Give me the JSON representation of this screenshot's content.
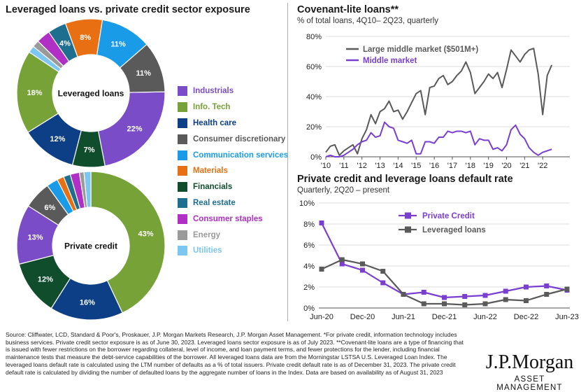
{
  "left": {
    "title": "Leveraged loans vs. private credit sector exposure",
    "legend": [
      {
        "label": "Industrials",
        "color": "#7b4cc8"
      },
      {
        "label": "Info. Tech",
        "color": "#76a237"
      },
      {
        "label": "Health care",
        "color": "#0d3f86"
      },
      {
        "label": "Consumer discretionary",
        "color": "#5a5a5a"
      },
      {
        "label": "Communication services",
        "color": "#1a9be8"
      },
      {
        "label": "Materials",
        "color": "#e86f12"
      },
      {
        "label": "Financials",
        "color": "#0f4d2c"
      },
      {
        "label": "Real estate",
        "color": "#1d6e8f"
      },
      {
        "label": "Consumer staples",
        "color": "#b02fc4"
      },
      {
        "label": "Energy",
        "color": "#9a9a9a"
      },
      {
        "label": "Utilities",
        "color": "#7cc6f2"
      }
    ]
  },
  "chart_data": [
    {
      "type": "pie",
      "center_label": "Leveraged loans",
      "slices": [
        {
          "name": "Industrials",
          "value": 22,
          "label": "22%"
        },
        {
          "name": "Financials",
          "value": 7,
          "label": "7%"
        },
        {
          "name": "Health care",
          "value": 12,
          "label": "12%"
        },
        {
          "name": "Info. Tech",
          "value": 18,
          "label": "18%"
        },
        {
          "name": "Utilities",
          "value": 1.5,
          "label": ""
        },
        {
          "name": "Energy",
          "value": 1.5,
          "label": ""
        },
        {
          "name": "Consumer staples",
          "value": 3,
          "label": ""
        },
        {
          "name": "Real estate",
          "value": 4,
          "label": "4%"
        },
        {
          "name": "Materials",
          "value": 8,
          "label": "8%"
        },
        {
          "name": "Communication services",
          "value": 11,
          "label": "11%"
        },
        {
          "name": "Consumer discretionary",
          "value": 11,
          "label": "11%"
        }
      ]
    },
    {
      "type": "pie",
      "center_label": "Private credit",
      "slices": [
        {
          "name": "Info. Tech",
          "value": 43,
          "label": "43%"
        },
        {
          "name": "Health care",
          "value": 16,
          "label": "16%"
        },
        {
          "name": "Financials",
          "value": 12,
          "label": "12%"
        },
        {
          "name": "Industrials",
          "value": 13,
          "label": "13%"
        },
        {
          "name": "Consumer discretionary",
          "value": 6,
          "label": "6%"
        },
        {
          "name": "Communication services",
          "value": 2.5,
          "label": ""
        },
        {
          "name": "Materials",
          "value": 1.5,
          "label": ""
        },
        {
          "name": "Real estate",
          "value": 1.5,
          "label": ""
        },
        {
          "name": "Consumer staples",
          "value": 2,
          "label": ""
        },
        {
          "name": "Energy",
          "value": 1,
          "label": ""
        },
        {
          "name": "Utilities",
          "value": 1.5,
          "label": ""
        }
      ]
    },
    {
      "type": "line",
      "title": "Covenant-lite loans**",
      "subtitle": "% of total loans, 4Q10– 2Q23, quarterly",
      "ylim": [
        0,
        80
      ],
      "yticks": [
        0,
        20,
        40,
        60,
        80
      ],
      "ytick_labels": [
        "0%",
        "20%",
        "40%",
        "60%",
        "80%"
      ],
      "xlim": [
        2010,
        2023.5
      ],
      "xticks": [
        2010,
        2011,
        2012,
        2013,
        2014,
        2015,
        2016,
        2017,
        2018,
        2019,
        2020,
        2021,
        2022
      ],
      "xtick_labels": [
        "'10",
        "'11",
        "'12",
        "'13",
        "'14",
        "'15",
        "'16",
        "'17",
        "'18",
        "'19",
        "'20",
        "'21",
        "'22"
      ],
      "grid": true,
      "legend_position": "top-left",
      "series": [
        {
          "name": "Large middle market ($501M+)",
          "color": "#5a5a5a",
          "x": [
            2010.0,
            2010.25,
            2010.5,
            2010.75,
            2011.0,
            2011.25,
            2011.5,
            2011.75,
            2012.0,
            2012.25,
            2012.5,
            2012.75,
            2013.0,
            2013.25,
            2013.5,
            2013.75,
            2014.0,
            2014.25,
            2014.5,
            2014.75,
            2015.0,
            2015.25,
            2015.5,
            2015.75,
            2016.0,
            2016.25,
            2016.5,
            2016.75,
            2017.0,
            2017.25,
            2017.5,
            2017.75,
            2018.0,
            2018.25,
            2018.5,
            2018.75,
            2019.0,
            2019.25,
            2019.5,
            2019.75,
            2020.0,
            2020.25,
            2020.5,
            2020.75,
            2021.0,
            2021.25,
            2021.5,
            2021.75,
            2022.0,
            2022.25,
            2022.5
          ],
          "y": [
            3,
            7,
            8,
            1,
            4,
            6,
            8,
            2,
            12,
            18,
            28,
            22,
            30,
            32,
            37,
            30,
            31,
            25,
            30,
            36,
            42,
            44,
            28,
            46,
            47,
            52,
            54,
            48,
            50,
            54,
            57,
            63,
            56,
            42,
            46,
            50,
            55,
            52,
            56,
            46,
            58,
            71,
            67,
            63,
            68,
            71,
            72,
            55,
            28,
            54,
            61
          ]
        },
        {
          "name": "Middle market",
          "color": "#7a3fd0",
          "x": [
            2010.0,
            2010.25,
            2010.5,
            2010.75,
            2011.0,
            2011.25,
            2011.5,
            2011.75,
            2012.0,
            2012.25,
            2012.5,
            2012.75,
            2013.0,
            2013.25,
            2013.5,
            2013.75,
            2014.0,
            2014.25,
            2014.5,
            2014.75,
            2015.0,
            2015.25,
            2015.5,
            2015.75,
            2016.0,
            2016.25,
            2016.5,
            2016.75,
            2017.0,
            2017.25,
            2017.5,
            2017.75,
            2018.0,
            2018.25,
            2018.5,
            2018.75,
            2019.0,
            2019.25,
            2019.5,
            2019.75,
            2020.0,
            2020.25,
            2020.5,
            2020.75,
            2021.0,
            2021.25,
            2021.5,
            2021.75,
            2022.0,
            2022.25,
            2022.5
          ],
          "y": [
            0,
            1,
            0,
            0,
            1,
            3,
            5,
            8,
            10,
            11,
            16,
            13,
            14,
            23,
            20,
            19,
            11,
            10,
            9,
            11,
            2,
            2,
            10,
            10,
            9,
            13,
            13,
            17,
            16,
            17,
            17,
            16,
            17,
            8,
            12,
            11,
            11,
            5,
            6,
            4,
            8,
            18,
            21,
            15,
            12,
            6,
            3,
            1,
            3,
            4,
            5
          ]
        }
      ]
    },
    {
      "type": "line",
      "title": "Private credit and leverage loans default rate",
      "subtitle": "Quarterly, 2Q20 – present",
      "ylim": [
        0,
        10
      ],
      "yticks": [
        0,
        2,
        4,
        6,
        8,
        10
      ],
      "ytick_labels": [
        "0%",
        "2%",
        "4%",
        "6%",
        "8%",
        "10%"
      ],
      "categories": [
        "Jun-20",
        "Sep-20",
        "Dec-20",
        "Mar-21",
        "Jun-21",
        "Sep-21",
        "Dec-21",
        "Mar-22",
        "Jun-22",
        "Sep-22",
        "Dec-22",
        "Mar-23",
        "Jun-23"
      ],
      "xtick_labels": [
        "Jun-20",
        "Dec-20",
        "Jun-21",
        "Dec-21",
        "Jun-22",
        "Dec-22",
        "Jun-23"
      ],
      "grid": true,
      "legend_position": "top-center",
      "series": [
        {
          "name": "Private Credit",
          "color": "#7a3fd0",
          "values": [
            8.1,
            4.2,
            3.6,
            2.4,
            1.3,
            1.5,
            1.0,
            1.1,
            1.2,
            1.6,
            2.0,
            2.1,
            1.7
          ]
        },
        {
          "name": "Leveraged loans",
          "color": "#5a5a5a",
          "values": [
            3.7,
            4.6,
            4.2,
            3.5,
            1.3,
            0.4,
            0.4,
            0.3,
            0.4,
            0.8,
            0.7,
            1.3,
            1.8
          ]
        }
      ]
    }
  ],
  "footnote": "Source: Cliffwater, LCD, Standard & Poor's, Proskauer, J.P. Morgan Markets Research, J.P. Morgan Asset Management. *For private credit, information technology includes business services. Private credit sector exposure is as of June 30, 2023. Leveraged loans sector exposure is as of July 2023. **Covenant-lite loans are a type of financing that is issued with fewer restrictions on the borrower regarding collateral, level of income, and loan payment terms, and fewer protections for the lender, including financial maintenance tests that measure the debt-service capabilities of the borrower. All leveraged loans data are from the Morningstar LSTSA U.S. Leveraged Loan Index. The leveraged loans default rate is calculated using the LTM number of defaults as a % of total issuers. Private credit default rate is as of December 31, 2023. The private credit default rate is calculated by dividing the number of defaulted loans by the aggregate number of loans in the Index. Data are based on availability as of August 31, 2023",
  "logo": {
    "main": "J.P.Morgan",
    "sub": "ASSET MANAGEMENT"
  }
}
